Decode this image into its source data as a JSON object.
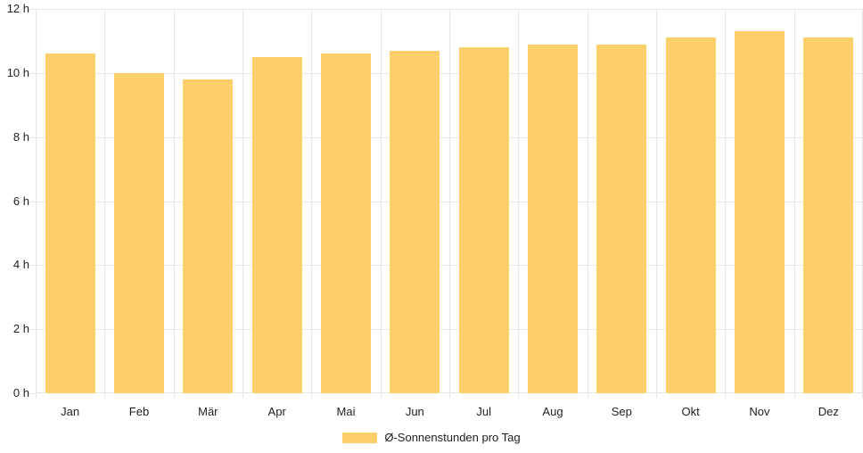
{
  "chart_data": {
    "type": "bar",
    "categories": [
      "Jan",
      "Feb",
      "Mär",
      "Apr",
      "Mai",
      "Jun",
      "Jul",
      "Aug",
      "Sep",
      "Okt",
      "Nov",
      "Dez"
    ],
    "values": [
      10.6,
      10.0,
      9.8,
      10.5,
      10.6,
      10.7,
      10.8,
      10.9,
      10.9,
      11.1,
      11.3,
      11.1
    ],
    "series_name": "Ø-Sonnenstunden pro Tag",
    "ylim": [
      0,
      12
    ],
    "ytick_step": 2,
    "ytick_labels": [
      "0 h",
      "2 h",
      "4 h",
      "6 h",
      "8 h",
      "10 h",
      "12 h"
    ],
    "grid": true,
    "legend_position": "bottom",
    "colors": {
      "bar": "#FCCF6A",
      "grid": "#E8E8E8",
      "text": "#1F1F1F",
      "background": "#FFFFFF"
    }
  }
}
